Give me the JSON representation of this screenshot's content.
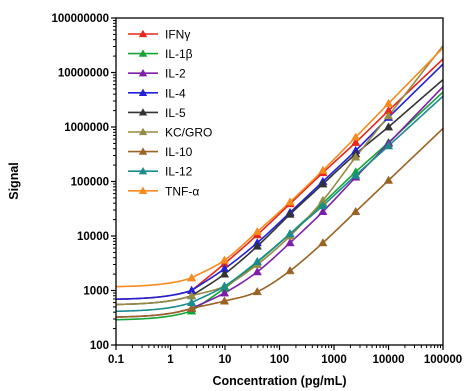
{
  "chart_data": {
    "type": "line",
    "xlabel": "Concentration (pg/mL)",
    "ylabel": "Signal",
    "x_scale": "log",
    "y_scale": "log",
    "xlim": [
      0.1,
      100000
    ],
    "ylim": [
      100,
      100000000
    ],
    "x_tick_labels": [
      "0.1",
      "1",
      "10",
      "100",
      "1000",
      "10000",
      "100000"
    ],
    "y_tick_labels": [
      "100",
      "1000",
      "10000",
      "100000",
      "1000000",
      "10000000",
      "100000000"
    ],
    "legend_position": "top-left",
    "x": [
      2.44,
      9.77,
      39.1,
      156,
      625,
      2500,
      10000
    ],
    "series": [
      {
        "name": "IFNγ",
        "color": "#e8251e",
        "values": [
          1000,
          3100,
          10500,
          39000,
          145000,
          520000,
          2000000
        ]
      },
      {
        "name": "IL-1β",
        "color": "#13a538",
        "values": [
          420,
          1100,
          3300,
          11000,
          40000,
          150000,
          520000
        ]
      },
      {
        "name": "IL-2",
        "color": "#7d1fa8",
        "values": [
          470,
          900,
          2200,
          7500,
          28000,
          120000,
          500000
        ]
      },
      {
        "name": "IL-4",
        "color": "#1f22d9",
        "values": [
          1000,
          2500,
          7500,
          27000,
          100000,
          370000,
          1500000
        ]
      },
      {
        "name": "IL-5",
        "color": "#333333",
        "values": [
          800,
          2000,
          6500,
          25000,
          90000,
          320000,
          1000000
        ]
      },
      {
        "name": "KC/GRO",
        "color": "#978a45",
        "values": [
          800,
          1200,
          3000,
          10000,
          45000,
          280000,
          1600000
        ]
      },
      {
        "name": "IL-10",
        "color": "#9a6322",
        "values": [
          470,
          640,
          950,
          2300,
          7500,
          28000,
          105000
        ]
      },
      {
        "name": "IL-12",
        "color": "#1b8c8c",
        "values": [
          600,
          1200,
          3400,
          11000,
          36000,
          130000,
          450000
        ]
      },
      {
        "name": "TNF-α",
        "color": "#f68a1f",
        "values": [
          1700,
          3600,
          12000,
          42000,
          160000,
          650000,
          2700000
        ]
      }
    ]
  }
}
